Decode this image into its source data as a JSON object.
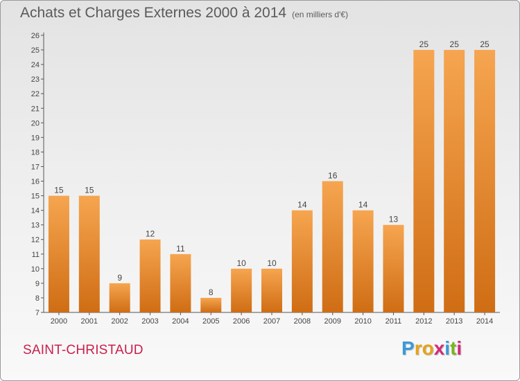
{
  "header": {
    "title": "Achats et Charges Externes 2000 à 2014",
    "unit": "(en milliers d'€)"
  },
  "footer": {
    "town": "SAINT-CHRISTAUD",
    "logo_letters": [
      "P",
      "r",
      "o",
      "x",
      "i",
      "t",
      "i"
    ],
    "logo_colors": [
      "#3a9ad9",
      "#e8a21a",
      "#e8a21a",
      "#d42a7a",
      "#3a9ad9",
      "#7ab51d",
      "#d42a7a"
    ]
  },
  "chart_data": {
    "type": "bar",
    "categories": [
      "2000",
      "2001",
      "2002",
      "2003",
      "2004",
      "2005",
      "2006",
      "2007",
      "2008",
      "2009",
      "2010",
      "2011",
      "2012",
      "2013",
      "2014"
    ],
    "values": [
      15,
      15,
      9,
      12,
      11,
      8,
      10,
      10,
      14,
      16,
      14,
      13,
      25,
      25,
      25
    ],
    "title": "Achats et Charges Externes 2000 à 2014",
    "ylim": [
      7,
      26
    ],
    "yticks": [
      7,
      8,
      9,
      10,
      11,
      12,
      13,
      14,
      15,
      16,
      17,
      18,
      19,
      20,
      21,
      22,
      23,
      24,
      25,
      26
    ],
    "grid": false,
    "legend": "none",
    "bar_color_top": "#f6a550",
    "bar_color_bottom": "#cf6d14"
  }
}
